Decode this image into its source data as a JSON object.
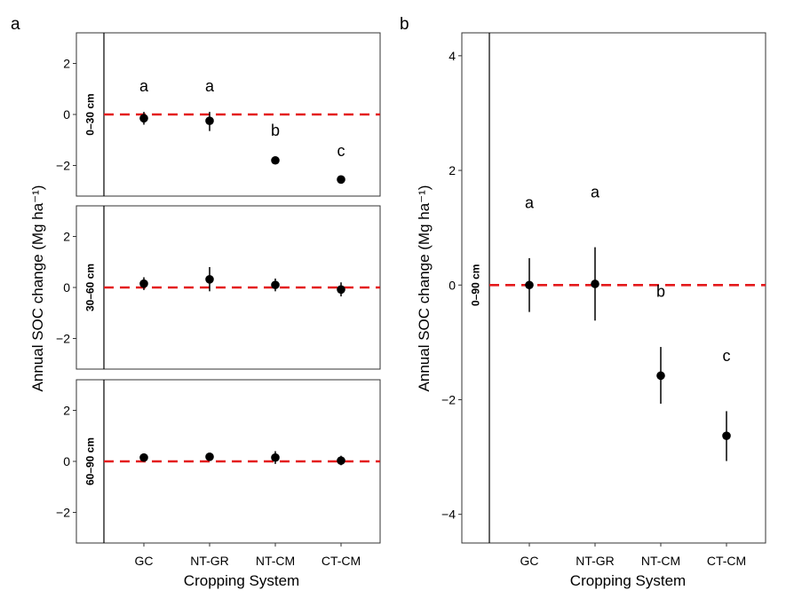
{
  "figure": {
    "panel_a_label": "a",
    "panel_b_label": "b"
  },
  "colors": {
    "reference_line": "#e41a1c",
    "point": "#000000",
    "panel_border": "#333333"
  },
  "chart_data": [
    {
      "type": "scatter",
      "panel": "a",
      "xlabel": "Cropping System",
      "ylabel": "Annual SOC change (Mg ha⁻¹)",
      "categories": [
        "GC",
        "NT-GR",
        "NT-CM",
        "CT-CM"
      ],
      "ylim": [
        -3.2,
        3.2
      ],
      "yticks": [
        -2,
        0,
        2
      ],
      "reference_line_y": 0,
      "facets": [
        {
          "strip": "0–30 cm",
          "points": [
            {
              "category": "GC",
              "y": -0.15,
              "low": -0.4,
              "high": 0.1,
              "letter": "a"
            },
            {
              "category": "NT-GR",
              "y": -0.25,
              "low": -0.65,
              "high": 0.1,
              "letter": "a"
            },
            {
              "category": "NT-CM",
              "y": -1.8,
              "low": -1.95,
              "high": -1.65,
              "letter": "b"
            },
            {
              "category": "CT-CM",
              "y": -2.55,
              "low": -2.65,
              "high": -2.45,
              "letter": "c"
            }
          ]
        },
        {
          "strip": "30–60 cm",
          "points": [
            {
              "category": "GC",
              "y": 0.15,
              "low": -0.1,
              "high": 0.4
            },
            {
              "category": "NT-GR",
              "y": 0.32,
              "low": -0.15,
              "high": 0.8
            },
            {
              "category": "NT-CM",
              "y": 0.1,
              "low": -0.15,
              "high": 0.35
            },
            {
              "category": "CT-CM",
              "y": -0.08,
              "low": -0.35,
              "high": 0.2
            }
          ]
        },
        {
          "strip": "60–90 cm",
          "points": [
            {
              "category": "GC",
              "y": 0.15,
              "low": 0.0,
              "high": 0.3
            },
            {
              "category": "NT-GR",
              "y": 0.18,
              "low": 0.03,
              "high": 0.33
            },
            {
              "category": "NT-CM",
              "y": 0.15,
              "low": -0.1,
              "high": 0.4
            },
            {
              "category": "CT-CM",
              "y": 0.03,
              "low": -0.15,
              "high": 0.22
            }
          ]
        }
      ]
    },
    {
      "type": "scatter",
      "panel": "b",
      "xlabel": "Cropping System",
      "ylabel": "Annual SOC change (Mg ha⁻¹)",
      "categories": [
        "GC",
        "NT-GR",
        "NT-CM",
        "CT-CM"
      ],
      "ylim": [
        -4.5,
        4.4
      ],
      "yticks": [
        -4,
        -2,
        0,
        2,
        4
      ],
      "reference_line_y": 0,
      "facets": [
        {
          "strip": "0–90 cm",
          "points": [
            {
              "category": "GC",
              "y": 0.0,
              "low": -0.47,
              "high": 0.47,
              "letter": "a"
            },
            {
              "category": "NT-GR",
              "y": 0.02,
              "low": -0.62,
              "high": 0.66,
              "letter": "a"
            },
            {
              "category": "NT-CM",
              "y": -1.58,
              "low": -2.07,
              "high": -1.08,
              "letter": "b"
            },
            {
              "category": "CT-CM",
              "y": -2.63,
              "low": -3.07,
              "high": -2.2,
              "letter": "c"
            }
          ]
        }
      ]
    }
  ]
}
